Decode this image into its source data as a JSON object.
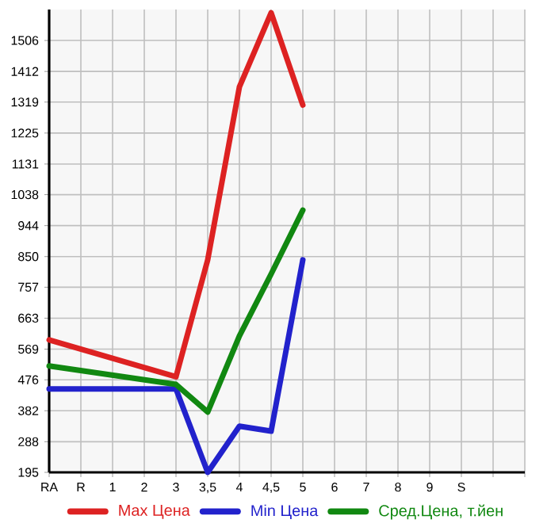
{
  "chart_data": {
    "type": "line",
    "categories": [
      "RA",
      "R",
      "1",
      "2",
      "3",
      "3,5",
      "4",
      "4,5",
      "5",
      "6",
      "7",
      "8",
      "9",
      "S",
      null
    ],
    "series": [
      {
        "name": "Max Цена",
        "color": "#dd2222",
        "values": [
          597,
          null,
          null,
          null,
          485,
          840,
          1365,
          1590,
          1310,
          null,
          null,
          null,
          null,
          null,
          null
        ]
      },
      {
        "name": "Min Цена",
        "color": "#2222cc",
        "values": [
          448,
          null,
          null,
          null,
          448,
          195,
          335,
          320,
          840,
          null,
          null,
          null,
          null,
          null,
          null
        ]
      },
      {
        "name": "Сред.Цена, т.йен",
        "color": "#118811",
        "values": [
          518,
          null,
          null,
          null,
          462,
          378,
          609,
          797,
          991,
          null,
          null,
          null,
          null,
          null,
          null
        ]
      }
    ],
    "ylim": [
      195,
      1600
    ],
    "yticks": [
      195,
      288,
      382,
      476,
      569,
      663,
      757,
      850,
      944,
      1038,
      1131,
      1225,
      1319,
      1412,
      1506
    ],
    "grid": true,
    "legend": "bottom",
    "marker": "none",
    "line_style": "solid"
  }
}
